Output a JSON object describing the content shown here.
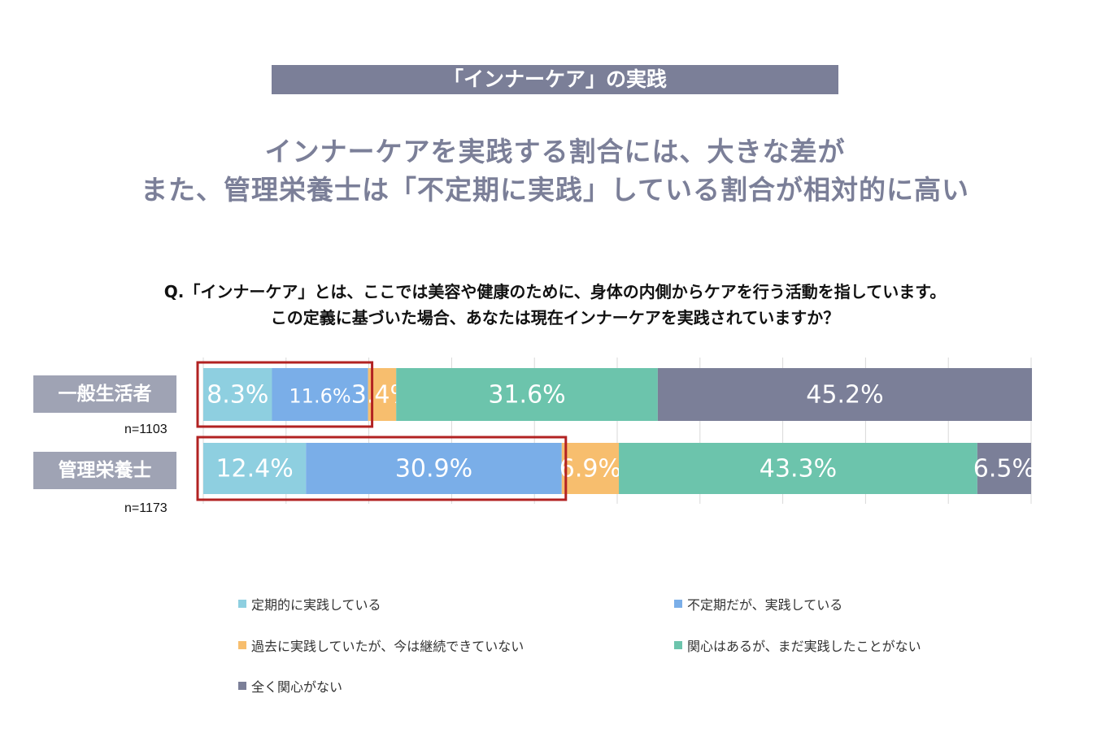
{
  "banner": "「インナーケア」の実践",
  "headline": {
    "line1": "インナーケアを実践する割合には、大きな差が",
    "line2": "また、管理栄養士は「不定期に実践」している割合が相対的に高い"
  },
  "question": {
    "line1": "Q.「インナーケア」とは、ここでは美容や健康のために、身体の内側からケアを行う活動を指しています。",
    "line2": "この定義に基づいた場合、あなたは現在インナーケアを実践されていますか？"
  },
  "colors": {
    "regular": "#8ecfe0",
    "irregular": "#7aaee8",
    "past": "#f7be6e",
    "interested": "#6cc4ac",
    "none": "#7b7f98",
    "highlight": "#b22222"
  },
  "chart_data": {
    "type": "bar",
    "orientation": "horizontal",
    "stacked": true,
    "xlim": [
      0,
      100
    ],
    "grid": true,
    "legend_position": "bottom",
    "categories": [
      "一般生活者",
      "管理栄養士"
    ],
    "sample_sizes": [
      "n=1103",
      "n=1173"
    ],
    "series": [
      {
        "name": "定期的に実践している",
        "color": "#8ecfe0",
        "values": [
          8.3,
          12.4
        ],
        "labels": [
          "8.3%",
          "12.4%"
        ]
      },
      {
        "name": "不定期だが、実践している",
        "color": "#7aaee8",
        "values": [
          11.6,
          30.9
        ],
        "labels": [
          "11.6%",
          "30.9%"
        ]
      },
      {
        "name": "過去に実践していたが、今は継続できていない",
        "color": "#f7be6e",
        "values": [
          3.4,
          6.9
        ],
        "labels": [
          "3.4%",
          "6.9%"
        ]
      },
      {
        "name": "関心はあるが、まだ実践したことがない",
        "color": "#6cc4ac",
        "values": [
          31.6,
          43.3
        ],
        "labels": [
          "31.6%",
          "43.3%"
        ]
      },
      {
        "name": "全く関心がない",
        "color": "#7b7f98",
        "values": [
          45.2,
          6.5
        ],
        "labels": [
          "45.2%",
          "6.5%"
        ]
      }
    ]
  }
}
